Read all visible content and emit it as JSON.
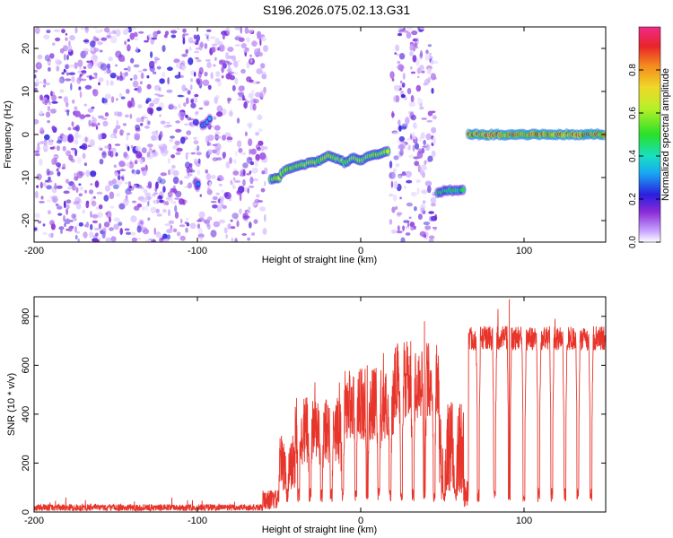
{
  "title": "S196.2026.075.02.13.G31",
  "chart_data": [
    {
      "type": "heatmap",
      "xlabel": "Height of straight line (km)",
      "ylabel": "Frequency (Hz)",
      "xlim": [
        -200,
        150
      ],
      "ylim": [
        -25,
        25
      ],
      "xticks": [
        -200,
        -100,
        0,
        100
      ],
      "yticks": [
        -20,
        -10,
        0,
        10,
        20
      ],
      "colorbar": {
        "label": "Normalized spectral amplitude",
        "ticks": [
          "0.0",
          "0.2",
          "0.4",
          "0.6",
          "0.8"
        ],
        "tick_values": [
          0,
          0.2,
          0.4,
          0.6,
          0.8
        ],
        "range": [
          0,
          1
        ]
      },
      "noise_regions": [
        {
          "x_start": -200,
          "x_end": -97,
          "amplitude": 0.15
        },
        {
          "x_start": -95,
          "x_end": -58,
          "amplitude": 0.12
        },
        {
          "x_start": 18,
          "x_end": 46,
          "amplitude": 0.15
        }
      ],
      "tracks": [
        {
          "name": "segment-1",
          "points": [
            [
              -101,
              -11
            ],
            [
              -100,
              -12
            ],
            [
              -99,
              -11
            ]
          ],
          "amplitude": 0.3
        },
        {
          "name": "segment-2",
          "points": [
            [
              -97,
              2
            ],
            [
              -94,
              3
            ],
            [
              -91,
              4
            ]
          ],
          "amplitude": 0.35
        },
        {
          "name": "segment-3",
          "points": [
            [
              -55,
              -10.5
            ],
            [
              -50,
              -10
            ],
            [
              -47,
              -8.5
            ],
            [
              -44,
              -8
            ],
            [
              -40,
              -7.5
            ],
            [
              -35,
              -7
            ],
            [
              -30,
              -6.5
            ],
            [
              -25,
              -6
            ],
            [
              -20,
              -5
            ],
            [
              -15,
              -5.5
            ],
            [
              -10,
              -6.5
            ],
            [
              -5,
              -5.5
            ],
            [
              0,
              -6
            ],
            [
              5,
              -5
            ],
            [
              10,
              -4.5
            ],
            [
              15,
              -4
            ],
            [
              18,
              -3.5
            ]
          ],
          "amplitude": 0.7
        },
        {
          "name": "segment-4",
          "points": [
            [
              47,
              -13.5
            ],
            [
              52,
              -13
            ],
            [
              56,
              -13
            ],
            [
              60,
              -13
            ],
            [
              64,
              -13
            ]
          ],
          "amplitude": 0.55
        },
        {
          "name": "segment-5",
          "points": [
            [
              66,
              0
            ],
            [
              75,
              0
            ],
            [
              85,
              0
            ],
            [
              95,
              0
            ],
            [
              105,
              0
            ],
            [
              115,
              0
            ],
            [
              125,
              0
            ],
            [
              135,
              0
            ],
            [
              145,
              0
            ],
            [
              150,
              0
            ]
          ],
          "amplitude": 0.95
        }
      ]
    },
    {
      "type": "line",
      "xlabel": "Height of straight line (km)",
      "ylabel": "SNR (10 * v/v)",
      "xlim": [
        -200,
        150
      ],
      "ylim": [
        0,
        880
      ],
      "xticks": [
        -200,
        -100,
        0,
        100
      ],
      "yticks": [
        0,
        200,
        400,
        600,
        800
      ],
      "color": "#e8352b",
      "series": [
        {
          "name": "SNR",
          "segments": [
            {
              "x_start": -200,
              "x_end": -60,
              "level": 18,
              "noise": 14
            },
            {
              "x_start": -60,
              "x_end": -50,
              "level": 50,
              "noise": 40
            },
            {
              "x_start": -50,
              "x_end": -40,
              "level": 200,
              "noise": 120
            },
            {
              "x_start": -40,
              "x_end": -10,
              "level": 330,
              "noise": 140
            },
            {
              "x_start": -10,
              "x_end": 20,
              "level": 440,
              "noise": 150
            },
            {
              "x_start": 20,
              "x_end": 48,
              "level": 540,
              "noise": 160
            },
            {
              "x_start": 48,
              "x_end": 63,
              "level": 250,
              "noise": 200
            },
            {
              "x_start": 63,
              "x_end": 66,
              "level": 80,
              "noise": 60
            },
            {
              "x_start": 66,
              "x_end": 150,
              "level": 710,
              "noise": 50
            }
          ],
          "dropouts": [
            -45,
            -38,
            -31,
            -24,
            -18,
            -11,
            -3,
            4,
            11,
            18,
            25,
            32,
            39,
            45,
            51,
            58,
            72,
            82,
            91,
            100,
            109,
            117,
            125,
            133,
            141
          ],
          "dropout_level": 70,
          "peaks": [
            [
              -40,
              430
            ],
            [
              -28,
              530
            ],
            [
              -13,
              530
            ],
            [
              4,
              600
            ],
            [
              14,
              650
            ],
            [
              39,
              780
            ],
            [
              84,
              830
            ],
            [
              91,
              870
            ],
            [
              119,
              790
            ]
          ]
        }
      ]
    }
  ]
}
